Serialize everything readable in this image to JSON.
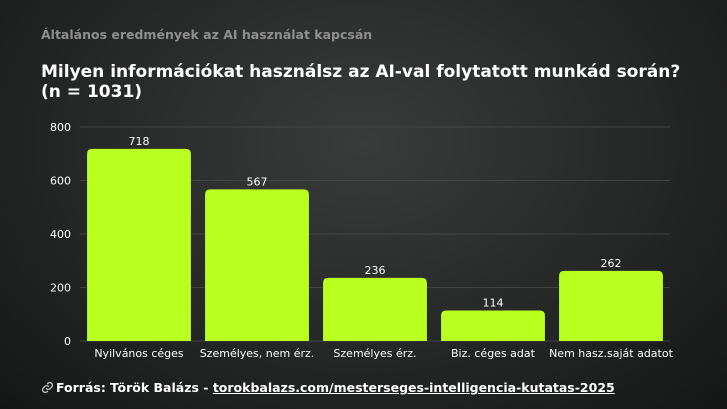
{
  "header": {
    "supertitle": "Általános eredmények az AI használat kapcsán"
  },
  "chart_data": {
    "type": "bar",
    "title": "Milyen  információkat használsz az AI-val folytatott munkád során?",
    "subtitle": "(n = 1031)",
    "categories": [
      "Nyilvános céges",
      "Személyes, nem érz.",
      "Személyes érz.",
      "Biz. céges adat",
      "Nem hasz.saját adatot"
    ],
    "values": [
      718,
      567,
      236,
      114,
      262
    ],
    "value_labels": [
      "718",
      "567",
      "236",
      "114",
      "262"
    ],
    "yticks": [
      0,
      200,
      400,
      600,
      800
    ],
    "ytick_labels": [
      "0",
      "200",
      "400",
      "600",
      "800"
    ],
    "ylim": [
      0,
      800
    ],
    "grid": true,
    "legend": "none",
    "bar_color": "#b9ff1f"
  },
  "footer": {
    "source_label": "Forrás: Török Balázs - ",
    "source_url": "torokbalazs.com/mesterseges-intelligencia-kutatas-2025",
    "icon": "link-icon"
  }
}
